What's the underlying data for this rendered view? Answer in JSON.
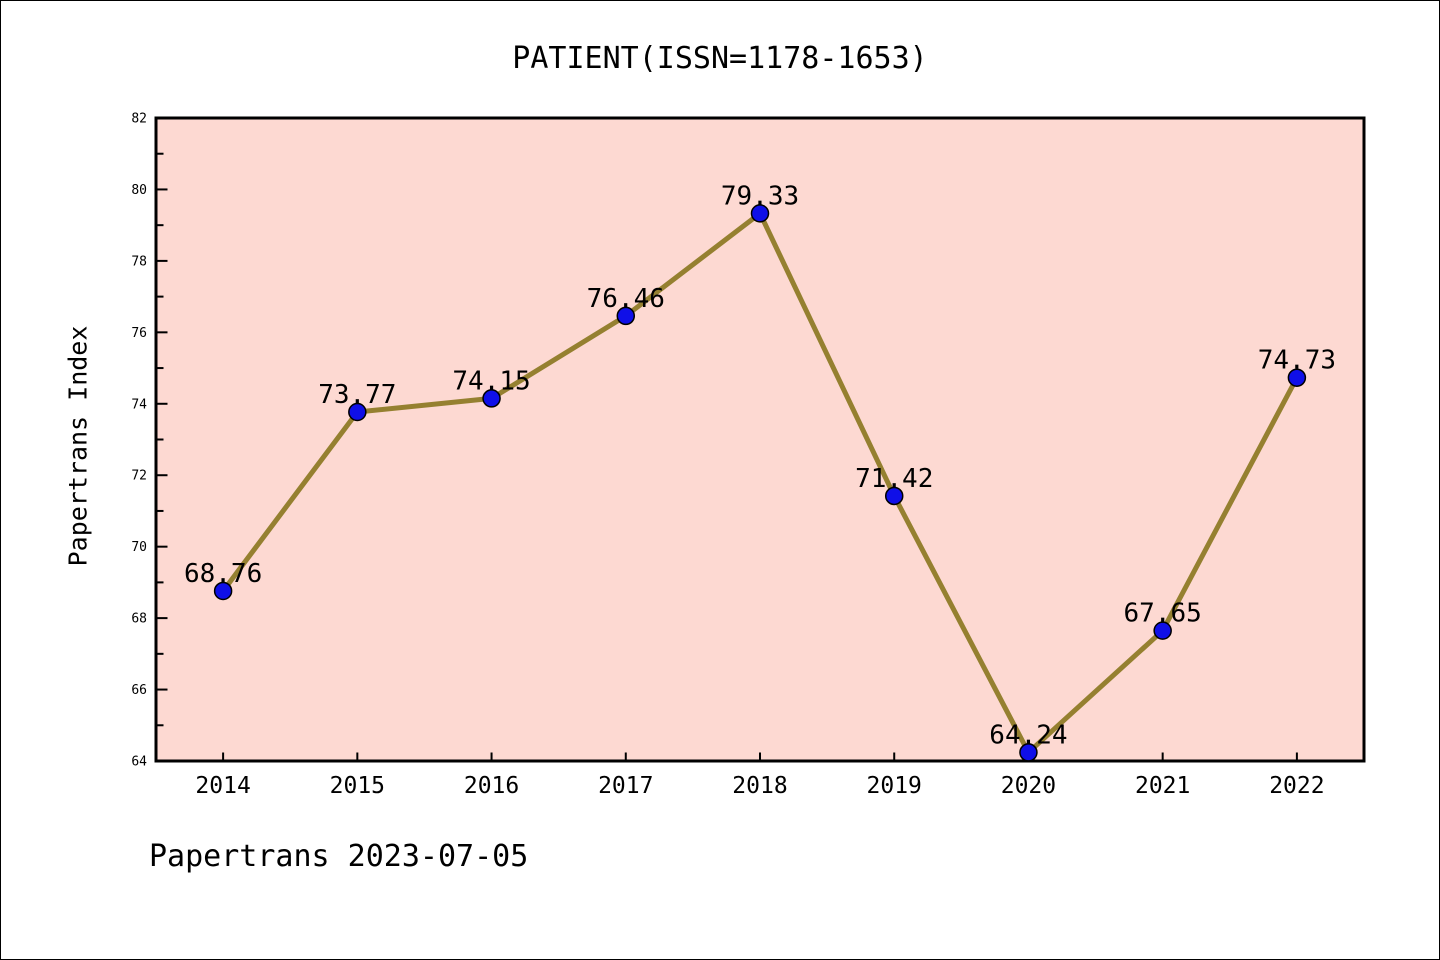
{
  "chart_data": {
    "type": "line",
    "title": "PATIENT(ISSN=1178-1653)",
    "ylabel": "Papertrans Index",
    "xlabel": "",
    "footer": "Papertrans 2023-07-05",
    "categories": [
      "2014",
      "2015",
      "2016",
      "2017",
      "2018",
      "2019",
      "2020",
      "2021",
      "2022"
    ],
    "series": [
      {
        "name": "Papertrans Index",
        "values": [
          68.76,
          73.77,
          74.15,
          76.46,
          79.33,
          71.42,
          64.24,
          67.65,
          74.73
        ]
      }
    ],
    "ylim": [
      64,
      82
    ],
    "y_major_tick_step": 2,
    "y_minor_tick_step": 1,
    "y_tick_labels": [
      "64",
      "66",
      "68",
      "70",
      "72",
      "74",
      "76",
      "78",
      "80",
      "82"
    ],
    "grid": false,
    "legend_position": "none",
    "colors": {
      "plot_bg": "#fdd9d2",
      "line": "#958030",
      "marker_fill": "#0f0fe8",
      "marker_edge": "#000000",
      "frame": "#000000",
      "text": "#000000"
    }
  }
}
